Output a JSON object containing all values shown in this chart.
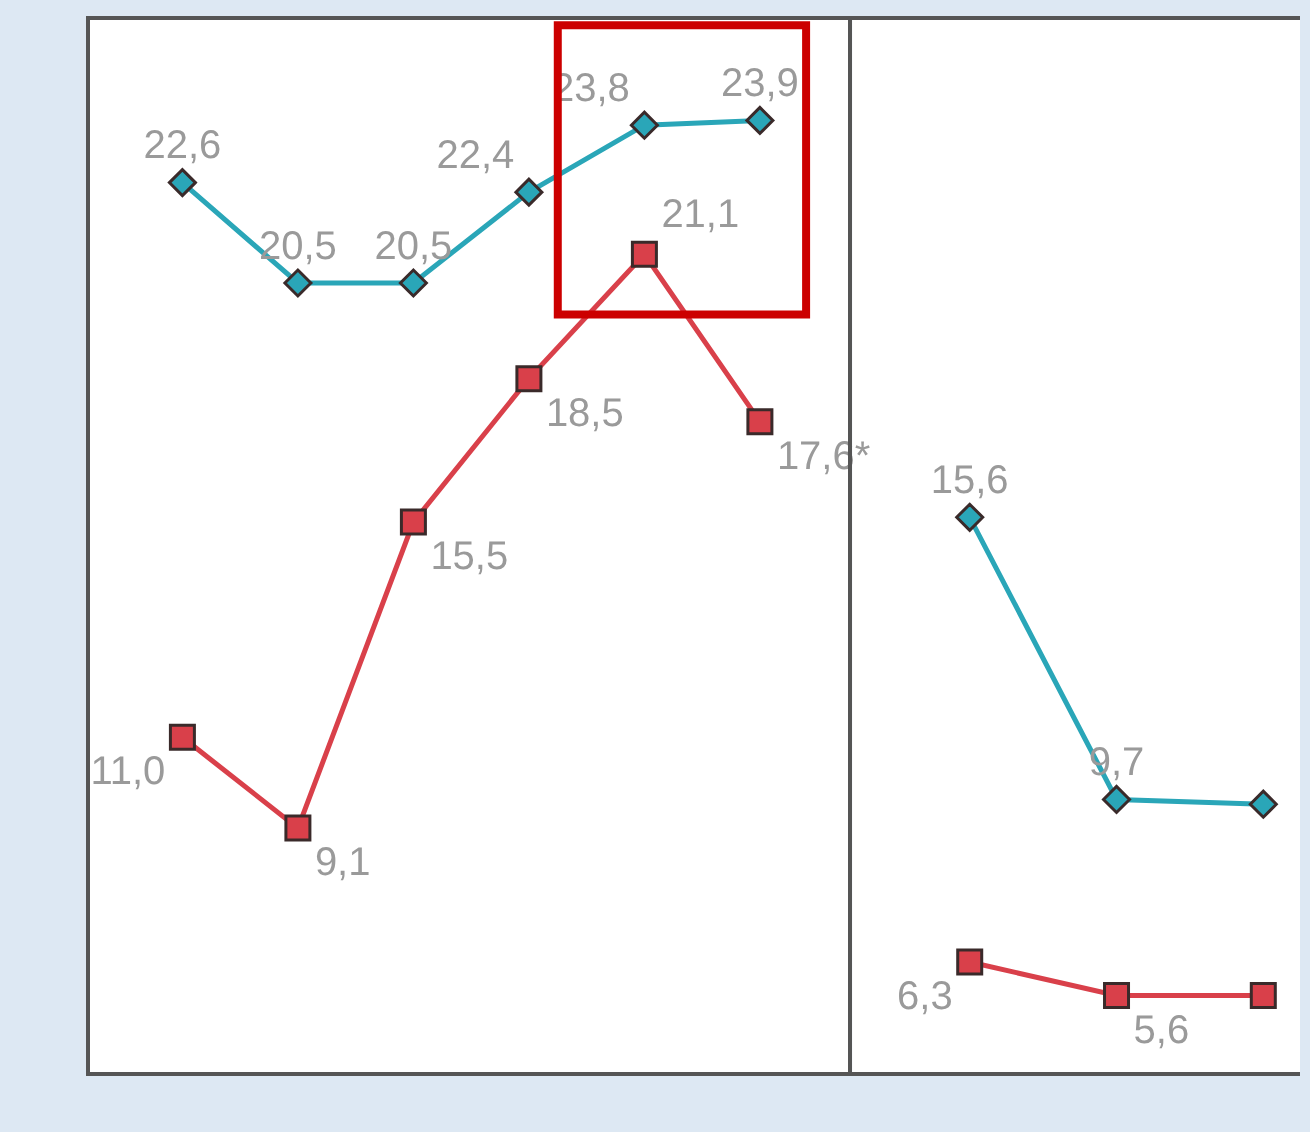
{
  "chart_data": [
    {
      "type": "line",
      "categories": [
        null,
        null,
        null,
        null,
        null,
        null
      ],
      "ylim": [
        4,
        26
      ],
      "line_style": "solid",
      "series": [
        {
          "color": "#2aa6b8",
          "marker": "diamond",
          "values": [
            22.6,
            20.5,
            20.5,
            22.4,
            23.8,
            23.9
          ],
          "value_labels": [
            "22,6",
            "20,5",
            "20,5",
            "22,4",
            "23,8",
            "23,9"
          ]
        },
        {
          "color": "#d9404a",
          "marker": "square",
          "values": [
            11.0,
            9.1,
            15.5,
            18.5,
            21.1,
            17.6
          ],
          "value_labels": [
            "11,0",
            "9,1",
            "15,5",
            "18,5",
            "21,1",
            "17,6*"
          ]
        }
      ]
    },
    {
      "type": "line",
      "categories": [
        null,
        null,
        null
      ],
      "ylim": [
        4,
        26
      ],
      "line_style": "solid",
      "series": [
        {
          "color": "#2aa6b8",
          "marker": "diamond",
          "values": [
            15.6,
            9.7,
            9.6
          ],
          "value_labels": [
            "15,6",
            "9,7",
            null
          ]
        },
        {
          "color": "#d9404a",
          "marker": "square",
          "values": [
            6.3,
            5.6,
            5.6
          ],
          "value_labels": [
            "6,3",
            "5,6",
            null
          ]
        }
      ]
    }
  ]
}
